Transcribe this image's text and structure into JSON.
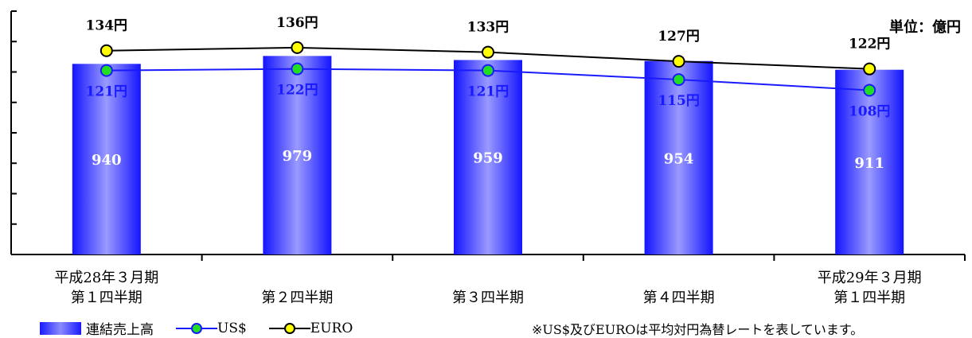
{
  "unit_label": "単位：億円",
  "note": "※US$及びEUROは平均対円為替レートを表しています。",
  "legend": {
    "sales": "連結売上高",
    "usd": "US$",
    "euro": "EURO"
  },
  "colors": {
    "bar": "#3333ff",
    "usd_line": "#1a1aff",
    "usd_marker": "#22dd22",
    "euro_line": "#000000",
    "euro_marker": "#ffff00"
  },
  "chart_data": {
    "type": "bar",
    "categories": [
      [
        "平成28年３月期",
        "第１四半期"
      ],
      [
        "第２四半期"
      ],
      [
        "第３四半期"
      ],
      [
        "第４四半期"
      ],
      [
        "平成29年３月期",
        "第１四半期"
      ]
    ],
    "series": [
      {
        "name": "連結売上高",
        "type": "bar",
        "values": [
          940,
          979,
          959,
          954,
          911
        ],
        "labels": [
          "940",
          "979",
          "959",
          "954",
          "911"
        ]
      },
      {
        "name": "US$",
        "type": "line",
        "values": [
          121,
          122,
          121,
          115,
          108
        ],
        "labels": [
          "121円",
          "122円",
          "121円",
          "115円",
          "108円"
        ]
      },
      {
        "name": "EURO",
        "type": "line",
        "values": [
          134,
          136,
          133,
          127,
          122
        ],
        "labels": [
          "134円",
          "136円",
          "133円",
          "127円",
          "122円"
        ]
      }
    ]
  }
}
